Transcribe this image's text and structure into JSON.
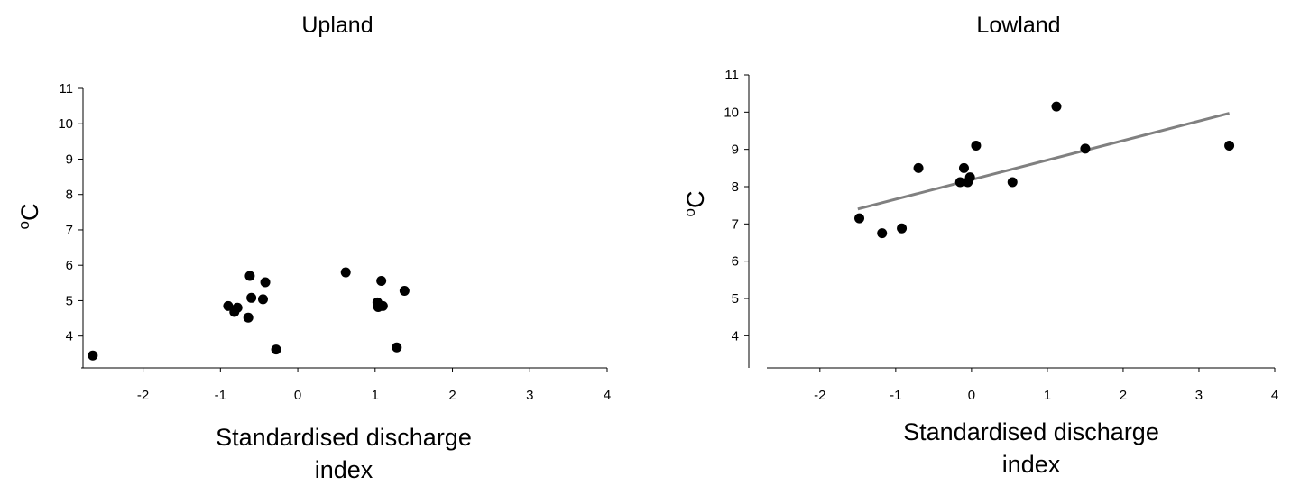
{
  "chart_data": [
    {
      "type": "scatter",
      "title": "Upland",
      "xlabel": [
        "Standardised discharge",
        "index"
      ],
      "ylabel": {
        "sup": "o",
        "main": "C"
      },
      "xlim": [
        -2.8,
        4
      ],
      "ylim": [
        3.1,
        11
      ],
      "xticks": [
        -2,
        -1,
        0,
        1,
        2,
        3,
        4
      ],
      "yticks": [
        4,
        5,
        6,
        7,
        8,
        9,
        10,
        11
      ],
      "marker_color": "#000000",
      "points": [
        {
          "x": -2.65,
          "y": 3.45
        },
        {
          "x": -0.9,
          "y": 4.85
        },
        {
          "x": -0.82,
          "y": 4.68
        },
        {
          "x": -0.78,
          "y": 4.8
        },
        {
          "x": -0.64,
          "y": 4.52
        },
        {
          "x": -0.62,
          "y": 5.7
        },
        {
          "x": -0.6,
          "y": 5.08
        },
        {
          "x": -0.45,
          "y": 5.04
        },
        {
          "x": -0.42,
          "y": 5.52
        },
        {
          "x": -0.28,
          "y": 3.62
        },
        {
          "x": 0.62,
          "y": 5.8
        },
        {
          "x": 1.03,
          "y": 4.95
        },
        {
          "x": 1.04,
          "y": 4.82
        },
        {
          "x": 1.08,
          "y": 5.56
        },
        {
          "x": 1.1,
          "y": 4.85
        },
        {
          "x": 1.28,
          "y": 3.68
        },
        {
          "x": 1.38,
          "y": 5.28
        }
      ]
    },
    {
      "type": "scatter",
      "title": "Lowland",
      "xlabel": [
        "Standardised discharge",
        "index"
      ],
      "ylabel": {
        "sup": "o",
        "main": "C"
      },
      "xlim": [
        -2.7,
        4
      ],
      "ylim": [
        3.5,
        11
      ],
      "xticks": [
        -2,
        -1,
        0,
        1,
        2,
        3,
        4
      ],
      "yticks": [
        4,
        5,
        6,
        7,
        8,
        9,
        10,
        11
      ],
      "marker_color": "#000000",
      "trendline_color": "#808080",
      "points": [
        {
          "x": -1.48,
          "y": 7.15
        },
        {
          "x": -1.18,
          "y": 6.75
        },
        {
          "x": -0.92,
          "y": 6.88
        },
        {
          "x": -0.7,
          "y": 8.5
        },
        {
          "x": -0.15,
          "y": 8.12
        },
        {
          "x": -0.1,
          "y": 8.5
        },
        {
          "x": -0.05,
          "y": 8.12
        },
        {
          "x": -0.02,
          "y": 8.25
        },
        {
          "x": 0.06,
          "y": 9.1
        },
        {
          "x": 0.54,
          "y": 8.12
        },
        {
          "x": 1.12,
          "y": 10.15
        },
        {
          "x": 1.5,
          "y": 9.02
        },
        {
          "x": 3.4,
          "y": 9.1
        }
      ],
      "trendline": {
        "x": [
          -1.5,
          3.4
        ],
        "y": [
          7.4,
          9.97
        ]
      }
    }
  ]
}
